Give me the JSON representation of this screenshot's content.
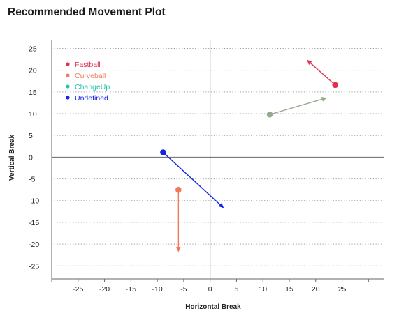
{
  "chart_data": {
    "type": "scatter",
    "title": "Recommended Movement Plot",
    "xlabel": "Horizontal Break",
    "ylabel": "Vertical Break",
    "xlim": [
      -30,
      33
    ],
    "ylim": [
      -28,
      27
    ],
    "xticks": [
      -25,
      -20,
      -15,
      -10,
      -5,
      0,
      5,
      10,
      15,
      20,
      25
    ],
    "yticks": [
      25,
      20,
      15,
      10,
      5,
      0,
      -5,
      -10,
      -15,
      -20,
      -25
    ],
    "grid": "horizontal-dotted",
    "legend_position": "top-left",
    "legend": [
      {
        "name": "Fastball",
        "color": "#e0314f"
      },
      {
        "name": "Curveball",
        "color": "#f07b5a"
      },
      {
        "name": "ChangeUp",
        "color": "#22c3a6"
      },
      {
        "name": "Undefined",
        "color": "#1424e0"
      }
    ],
    "pitches": [
      {
        "start": [
          23.7,
          16.6
        ],
        "end": [
          18.4,
          22.3
        ],
        "point_color": "#e0314f",
        "arrow_color": "#d63a57"
      },
      {
        "start": [
          11.3,
          9.8
        ],
        "end": [
          22.0,
          13.6
        ],
        "point_color": "#94a98e",
        "arrow_color": "#94a98e"
      },
      {
        "start": [
          -8.9,
          1.1
        ],
        "end": [
          2.5,
          -11.6
        ],
        "point_color": "#1424e0",
        "arrow_color": "#1424e0"
      },
      {
        "start": [
          -6.0,
          -7.5
        ],
        "end": [
          -6.0,
          -21.7
        ],
        "point_color": "#f07b5a",
        "arrow_color": "#f07b5a"
      }
    ]
  }
}
